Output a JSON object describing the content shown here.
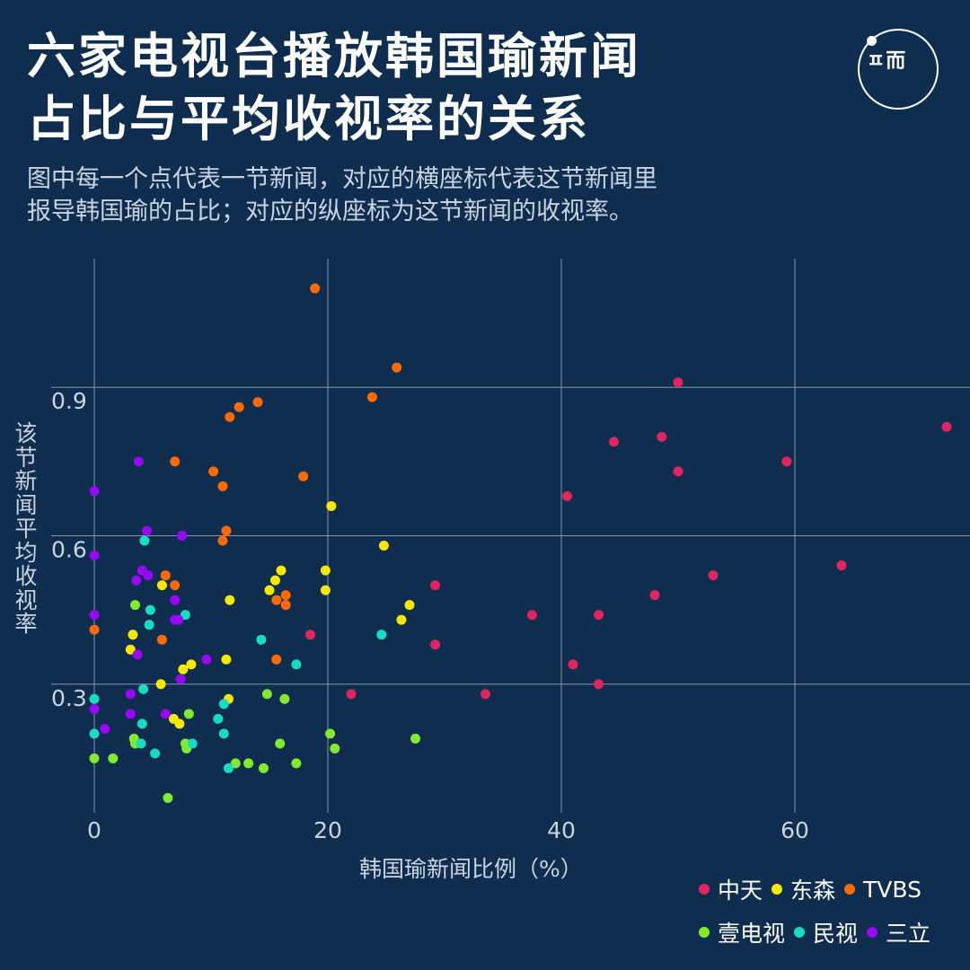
{
  "header": {
    "title_line1": "六家电视台播放韩国瑜新闻",
    "title_line2": "占比与平均收视率的关系",
    "subtitle_line1": "图中每一个点代表一节新闻，对应的横座标代表这节新闻里",
    "subtitle_line2": "报导韩国瑜的占比；对应的纵座标为这节新闻的收视率。",
    "logo_text": "ㅍ而"
  },
  "colors": {
    "background": "#0e2d4f",
    "grid": "#8896a6",
    "中天": "#e0255f",
    "东森": "#f7e804",
    "TVBS": "#fd6a02",
    "壹电视": "#82eb2e",
    "民视": "#17dcc4",
    "三立": "#9a07f7"
  },
  "chart_data": {
    "type": "scatter",
    "xlabel": "韩国瑜新闻比例（%）",
    "ylabel": "该节新闻平均收视率",
    "xlim": [
      0,
      75
    ],
    "ylim": [
      0.04,
      1.16
    ],
    "xticks": [
      "0",
      "20",
      "40",
      "60"
    ],
    "yticks": [
      "0.3",
      "0.6",
      "0.9"
    ],
    "grid": true,
    "legend_position": "bottom-right",
    "series": [
      {
        "name": "中天",
        "points": [
          [
            73,
            0.82
          ],
          [
            50,
            0.91
          ],
          [
            48.6,
            0.8
          ],
          [
            50,
            0.73
          ],
          [
            44.5,
            0.79
          ],
          [
            40.5,
            0.68
          ],
          [
            59.3,
            0.75
          ],
          [
            53,
            0.52
          ],
          [
            64,
            0.54
          ],
          [
            48,
            0.48
          ],
          [
            29.2,
            0.5
          ],
          [
            37.5,
            0.44
          ],
          [
            43.2,
            0.44
          ],
          [
            29.2,
            0.38
          ],
          [
            41,
            0.34
          ],
          [
            43.2,
            0.3
          ],
          [
            33.5,
            0.28
          ],
          [
            22,
            0.28
          ],
          [
            18.5,
            0.4
          ]
        ]
      },
      {
        "name": "东森",
        "points": [
          [
            20.3,
            0.66
          ],
          [
            24.8,
            0.58
          ],
          [
            19.8,
            0.53
          ],
          [
            16,
            0.53
          ],
          [
            15.5,
            0.51
          ],
          [
            15,
            0.49
          ],
          [
            19.8,
            0.49
          ],
          [
            11.6,
            0.47
          ],
          [
            27,
            0.46
          ],
          [
            26.3,
            0.43
          ],
          [
            5.8,
            0.5
          ],
          [
            3.3,
            0.4
          ],
          [
            3.1,
            0.37
          ],
          [
            8.3,
            0.34
          ],
          [
            11.3,
            0.35
          ],
          [
            7.6,
            0.33
          ],
          [
            5.7,
            0.3
          ],
          [
            11.5,
            0.27
          ],
          [
            6.8,
            0.23
          ],
          [
            7.3,
            0.22
          ]
        ]
      },
      {
        "name": "TVBS",
        "points": [
          [
            18.9,
            1.1
          ],
          [
            25.9,
            0.94
          ],
          [
            23.8,
            0.88
          ],
          [
            14,
            0.87
          ],
          [
            12.4,
            0.86
          ],
          [
            11.6,
            0.84
          ],
          [
            6.9,
            0.75
          ],
          [
            10.2,
            0.73
          ],
          [
            17.9,
            0.72
          ],
          [
            11,
            0.7
          ],
          [
            11.3,
            0.61
          ],
          [
            11,
            0.59
          ],
          [
            6.1,
            0.52
          ],
          [
            6.9,
            0.5
          ],
          [
            16.4,
            0.48
          ],
          [
            15.6,
            0.47
          ],
          [
            16.4,
            0.46
          ],
          [
            0,
            0.41
          ],
          [
            5.8,
            0.39
          ],
          [
            15.6,
            0.35
          ]
        ]
      },
      {
        "name": "壹电视",
        "points": [
          [
            3.5,
            0.46
          ],
          [
            0,
            0.15
          ],
          [
            1.6,
            0.15
          ],
          [
            3.4,
            0.19
          ],
          [
            3.5,
            0.18
          ],
          [
            7.8,
            0.18
          ],
          [
            7.9,
            0.17
          ],
          [
            8.1,
            0.24
          ],
          [
            14.8,
            0.28
          ],
          [
            16.3,
            0.27
          ],
          [
            20.2,
            0.2
          ],
          [
            20.6,
            0.17
          ],
          [
            15.9,
            0.18
          ],
          [
            27.5,
            0.19
          ],
          [
            12.1,
            0.14
          ],
          [
            13.2,
            0.14
          ],
          [
            14.5,
            0.13
          ],
          [
            17.3,
            0.14
          ],
          [
            6.3,
            0.07
          ]
        ]
      },
      {
        "name": "民视",
        "points": [
          [
            4.3,
            0.59
          ],
          [
            4.8,
            0.45
          ],
          [
            4.7,
            0.42
          ],
          [
            7.8,
            0.44
          ],
          [
            14.3,
            0.39
          ],
          [
            24.6,
            0.4
          ],
          [
            17.3,
            0.34
          ],
          [
            0,
            0.27
          ],
          [
            4.2,
            0.29
          ],
          [
            4.1,
            0.22
          ],
          [
            0,
            0.2
          ],
          [
            4,
            0.18
          ],
          [
            5.2,
            0.16
          ],
          [
            8.4,
            0.18
          ],
          [
            10.6,
            0.23
          ],
          [
            11.1,
            0.26
          ],
          [
            11.1,
            0.2
          ],
          [
            11.5,
            0.13
          ]
        ]
      },
      {
        "name": "三立",
        "points": [
          [
            3.8,
            0.75
          ],
          [
            0,
            0.69
          ],
          [
            0,
            0.56
          ],
          [
            4.5,
            0.61
          ],
          [
            7.5,
            0.6
          ],
          [
            4.1,
            0.53
          ],
          [
            3.6,
            0.51
          ],
          [
            4.6,
            0.52
          ],
          [
            6.9,
            0.47
          ],
          [
            0,
            0.44
          ],
          [
            6.9,
            0.43
          ],
          [
            7.2,
            0.43
          ],
          [
            3.7,
            0.36
          ],
          [
            9.6,
            0.35
          ],
          [
            7.4,
            0.31
          ],
          [
            3.1,
            0.28
          ],
          [
            0,
            0.25
          ],
          [
            3.1,
            0.24
          ],
          [
            6.1,
            0.24
          ],
          [
            0.9,
            0.21
          ]
        ]
      }
    ]
  }
}
